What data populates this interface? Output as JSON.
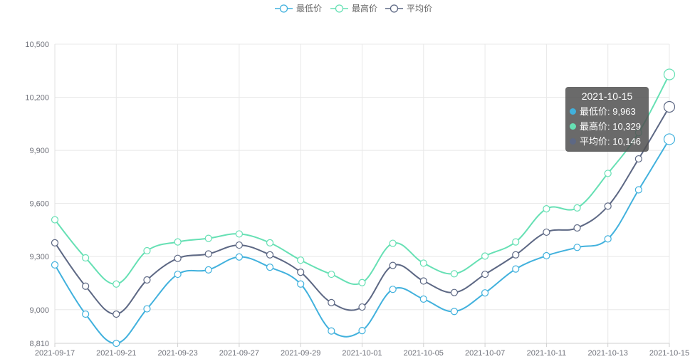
{
  "chart_data": {
    "type": "line",
    "smooth": true,
    "categories": [
      "2021-09-17",
      "2021-09-18",
      "2021-09-21",
      "2021-09-22",
      "2021-09-23",
      "2021-09-24",
      "2021-09-27",
      "2021-09-28",
      "2021-09-29",
      "2021-09-30",
      "2021-10-01",
      "2021-10-04",
      "2021-10-05",
      "2021-10-06",
      "2021-10-07",
      "2021-10-08",
      "2021-10-11",
      "2021-10-12",
      "2021-10-13",
      "2021-10-14",
      "2021-10-15"
    ],
    "x_tick_labels": [
      "2021-09-17",
      "2021-09-21",
      "2021-09-23",
      "2021-09-27",
      "2021-09-29",
      "2021-10-01",
      "2021-10-05",
      "2021-10-07",
      "2021-10-11",
      "2021-10-13",
      "2021-10-15"
    ],
    "series": [
      {
        "name": "最低价",
        "color": "#41b1dd",
        "values": [
          9253,
          8975,
          8810,
          9005,
          9200,
          9225,
          9298,
          9240,
          9145,
          8880,
          8882,
          9115,
          9060,
          8990,
          9095,
          9230,
          9305,
          9352,
          9400,
          9677,
          9963
        ]
      },
      {
        "name": "最高价",
        "color": "#66e0b4",
        "values": [
          9508,
          9293,
          9145,
          9333,
          9383,
          9403,
          9428,
          9378,
          9280,
          9200,
          9153,
          9375,
          9263,
          9203,
          9303,
          9383,
          9570,
          9575,
          9770,
          10000,
          10329
        ]
      },
      {
        "name": "平均价",
        "color": "#5d6884",
        "values": [
          9378,
          9133,
          8975,
          9168,
          9290,
          9315,
          9365,
          9310,
          9212,
          9040,
          9015,
          9250,
          9162,
          9097,
          9200,
          9310,
          9438,
          9462,
          9585,
          9852,
          10146
        ]
      }
    ],
    "y_ticks": [
      8810,
      9000,
      9300,
      9600,
      9900,
      10200,
      10500
    ],
    "ylim": [
      8810,
      10500
    ],
    "grid": true,
    "legend_position": "top-center"
  },
  "tooltip": {
    "title": "2021-10-15",
    "rows": [
      {
        "label": "最低价: 9,963",
        "color": "#41b1dd"
      },
      {
        "label": "最高价: 10,329",
        "color": "#66e0b4"
      },
      {
        "label": "平均价: 10,146",
        "color": "#5d6884"
      }
    ]
  }
}
